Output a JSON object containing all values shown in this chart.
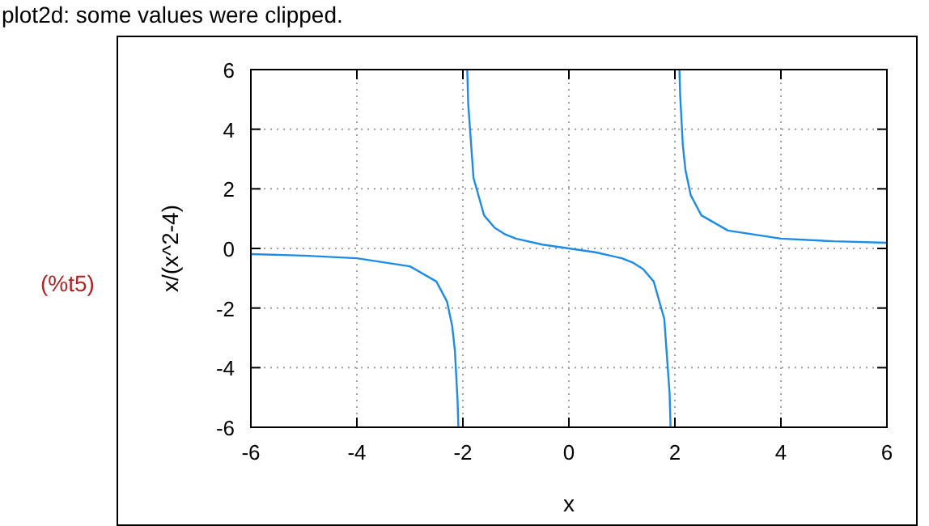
{
  "chart_data": {
    "type": "line",
    "xlabel": "x",
    "ylabel": "x/(x^2-4)",
    "annotations": [
      "plot2d: some values were clipped.",
      "(%t5)"
    ],
    "xlim": [
      -6,
      6
    ],
    "ylim": [
      -6,
      6
    ],
    "xticks": [
      -6,
      -4,
      -2,
      0,
      2,
      4,
      6
    ],
    "yticks": [
      -6,
      -4,
      -2,
      0,
      2,
      4,
      6
    ],
    "grid": true,
    "marker": "none",
    "line_style": "solid",
    "series": [
      {
        "color": "#1e8ce6",
        "x": [
          -6,
          -5,
          -4,
          -3,
          -2.5,
          -2.3,
          -2.2,
          -2.15,
          -2.1,
          -2.085,
          -2,
          -1.918,
          -1.9,
          -1.8,
          -1.6,
          -1.4,
          -1.2,
          -1,
          -0.5,
          0,
          0.5,
          1,
          1.2,
          1.4,
          1.6,
          1.8,
          1.9,
          1.918,
          2,
          2.085,
          2.1,
          2.15,
          2.2,
          2.3,
          2.5,
          3,
          4,
          5,
          6
        ],
        "values": [
          -0.19,
          -0.24,
          -0.33,
          -0.6,
          -1.11,
          -1.78,
          -2.62,
          -3.45,
          -5.12,
          -6,
          null,
          6,
          4.87,
          2.37,
          1.11,
          0.69,
          0.47,
          0.33,
          0.13,
          0,
          -0.13,
          -0.33,
          -0.47,
          -0.69,
          -1.11,
          -2.37,
          -4.87,
          -6,
          null,
          6,
          5.12,
          3.45,
          2.62,
          1.78,
          1.11,
          0.6,
          0.33,
          0.24,
          0.19
        ]
      }
    ]
  }
}
